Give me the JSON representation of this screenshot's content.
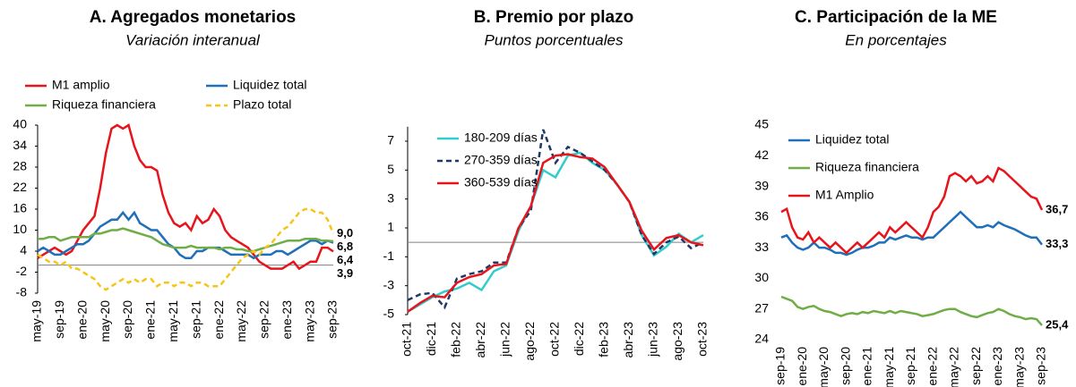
{
  "chart_data": [
    {
      "type": "line",
      "title": "A.   Agregados monetarios",
      "subtitle": "Variación interanual",
      "categories": [
        "may-19",
        null,
        null,
        null,
        "sep-19",
        null,
        null,
        null,
        "ene-20",
        null,
        null,
        null,
        "may-20",
        null,
        null,
        null,
        "sep-20",
        null,
        null,
        null,
        "ene-21",
        null,
        null,
        null,
        "may-21",
        null,
        null,
        null,
        "sep-21",
        null,
        null,
        null,
        "ene-22",
        null,
        null,
        null,
        "may-22",
        null,
        null,
        null,
        "sep-22",
        null,
        null,
        null,
        "ene-23",
        null,
        null,
        null,
        "may-23",
        null,
        null,
        null,
        "sep-23"
      ],
      "ylim": [
        -8,
        40
      ],
      "yticks": [
        40,
        34,
        28,
        22,
        16,
        10,
        4,
        -2,
        -8
      ],
      "zero_line": true,
      "legend": "top",
      "series": [
        {
          "name": "M1 amplio",
          "color": "#e8141b",
          "style": "solid",
          "values": [
            2,
            3,
            4,
            5,
            4,
            3,
            4,
            7,
            10,
            12,
            14,
            22,
            32,
            39,
            40,
            39,
            40,
            34,
            30,
            28,
            28,
            27,
            20,
            15,
            12,
            11,
            12,
            10,
            14,
            12,
            13,
            16,
            14,
            10,
            8,
            7,
            6,
            5,
            3,
            1,
            0,
            -1,
            -1,
            -1,
            0,
            1,
            -1,
            0,
            1,
            1,
            5,
            5,
            3.9
          ],
          "value_labels": [
            null,
            null,
            null,
            null,
            null,
            null,
            null,
            null,
            null,
            null,
            null,
            null,
            null,
            null,
            null,
            null,
            null,
            null,
            null,
            null,
            null,
            null,
            null,
            null,
            null,
            null,
            null,
            null,
            null,
            null,
            null,
            null,
            null,
            null,
            null,
            null,
            null,
            null,
            null,
            null,
            null,
            null,
            null,
            null,
            null,
            null,
            null,
            null,
            null,
            null,
            null,
            null,
            "3,9"
          ]
        },
        {
          "name": "Liquidez total",
          "color": "#1f6fb9",
          "style": "solid",
          "values": [
            4,
            5,
            4,
            3,
            3,
            4,
            5,
            6,
            6,
            7,
            9,
            11,
            12,
            13,
            13,
            15,
            13,
            15,
            12,
            11,
            10,
            10,
            8,
            6,
            5,
            3,
            2,
            2,
            4,
            4,
            5,
            5,
            5,
            4,
            3,
            3,
            3,
            3,
            2,
            3,
            3,
            3,
            4,
            4,
            3,
            4,
            5,
            6,
            7,
            7,
            6,
            7,
            6.4
          ],
          "value_labels": [
            null,
            null,
            null,
            null,
            null,
            null,
            null,
            null,
            null,
            null,
            null,
            null,
            null,
            null,
            null,
            null,
            null,
            null,
            null,
            null,
            null,
            null,
            null,
            null,
            null,
            null,
            null,
            null,
            null,
            null,
            null,
            null,
            null,
            null,
            null,
            null,
            null,
            null,
            null,
            null,
            null,
            null,
            null,
            null,
            null,
            null,
            null,
            null,
            null,
            null,
            null,
            null,
            "6,4"
          ]
        },
        {
          "name": "Riqueza financiera",
          "color": "#70ad47",
          "style": "solid",
          "values": [
            7.5,
            7.5,
            8,
            8,
            7,
            7.5,
            8,
            8,
            8,
            8,
            9,
            9,
            9.5,
            10,
            10,
            10.5,
            10,
            9.5,
            9,
            8.5,
            8,
            7,
            6,
            5.5,
            5,
            5,
            5,
            5.5,
            5,
            5,
            5,
            5,
            4.5,
            5,
            5,
            4.5,
            4.5,
            4,
            4,
            4.5,
            5,
            5.5,
            6,
            6.5,
            7,
            7,
            7,
            7.5,
            7.5,
            7.5,
            7,
            7,
            6.8
          ],
          "value_labels": [
            null,
            null,
            null,
            null,
            null,
            null,
            null,
            null,
            null,
            null,
            null,
            null,
            null,
            null,
            null,
            null,
            null,
            null,
            null,
            null,
            null,
            null,
            null,
            null,
            null,
            null,
            null,
            null,
            null,
            null,
            null,
            null,
            null,
            null,
            null,
            null,
            null,
            null,
            null,
            null,
            null,
            null,
            null,
            null,
            null,
            null,
            null,
            null,
            null,
            null,
            null,
            null,
            "6,8"
          ]
        },
        {
          "name": "Plazo total",
          "color": "#f5c518",
          "style": "dashed",
          "values": [
            3,
            2,
            1,
            1,
            0,
            1,
            -1,
            -1,
            -2,
            -3,
            -4,
            -6,
            -7,
            -6,
            -5,
            -4,
            -5,
            -4,
            -5,
            -4,
            -4,
            -6,
            -5,
            -5,
            -6,
            -5,
            -5,
            -6,
            -5,
            -5,
            -6,
            -6,
            -6,
            -4,
            -2,
            0,
            2,
            3,
            4,
            3,
            5,
            6,
            8,
            10,
            11,
            13,
            15,
            16,
            16,
            15,
            15,
            13,
            9
          ],
          "value_labels": [
            null,
            null,
            null,
            null,
            null,
            null,
            null,
            null,
            null,
            null,
            null,
            null,
            null,
            null,
            null,
            null,
            null,
            null,
            null,
            null,
            null,
            null,
            null,
            null,
            null,
            null,
            null,
            null,
            null,
            null,
            null,
            null,
            null,
            null,
            null,
            null,
            null,
            null,
            null,
            null,
            null,
            null,
            null,
            null,
            null,
            null,
            null,
            null,
            null,
            null,
            null,
            null,
            "9,0"
          ]
        }
      ]
    },
    {
      "type": "line",
      "title": "B. Premio por plazo",
      "subtitle": "Puntos porcentuales",
      "categories": [
        "oct-21",
        null,
        "dic-21",
        null,
        "feb-22",
        null,
        "abr-22",
        null,
        "jun-22",
        null,
        "ago-22",
        null,
        "oct-22",
        null,
        "dic-22",
        null,
        "feb-23",
        null,
        "abr-23",
        null,
        "jun-23",
        null,
        "ago-23",
        null,
        "oct-23"
      ],
      "ylim": [
        -5,
        8
      ],
      "yticks": [
        7,
        5,
        3,
        1,
        -1,
        -3,
        -5
      ],
      "zero_line": true,
      "legend": "upper left",
      "series": [
        {
          "name": "180-209 días",
          "color": "#33cccc",
          "style": "solid",
          "values": [
            -4.8,
            -4.3,
            -3.8,
            -3.4,
            -3.2,
            -2.8,
            -3.3,
            -2,
            -1.6,
            0.8,
            2.5,
            5,
            4.5,
            6,
            6.2,
            5.5,
            5,
            4,
            2.8,
            0.5,
            -0.9,
            -0.3,
            0.6,
            0,
            0.5
          ]
        },
        {
          "name": "270-359 días",
          "color": "#1f3864",
          "style": "dashed",
          "values": [
            -4,
            -3.6,
            -3.5,
            -4.5,
            -2.5,
            -2.2,
            -2,
            -1.4,
            -1.4,
            1,
            2.2,
            7.8,
            5.5,
            6.6,
            6.2,
            5.6,
            5,
            4,
            2.8,
            0.5,
            -0.8,
            0,
            0.4,
            -0.4,
            0
          ]
        },
        {
          "name": "360-539 días",
          "color": "#e8141b",
          "style": "solid",
          "values": [
            -4.8,
            -4.2,
            -3.7,
            -3.8,
            -2.8,
            -2.4,
            -2.2,
            -1.6,
            -1.5,
            1,
            2.5,
            5.5,
            6,
            6.1,
            5.9,
            5.8,
            5.2,
            4,
            2.8,
            0.8,
            -0.5,
            0.3,
            0.5,
            0,
            -0.2
          ]
        }
      ]
    },
    {
      "type": "line",
      "title": "C. Participación de la ME",
      "subtitle": "En porcentajes",
      "categories": [
        "sep-19",
        null,
        null,
        null,
        "ene-20",
        null,
        null,
        null,
        "may-20",
        null,
        null,
        null,
        "sep-20",
        null,
        null,
        null,
        "ene-21",
        null,
        null,
        null,
        "may-21",
        null,
        null,
        null,
        "sep-21",
        null,
        null,
        null,
        "ene-22",
        null,
        null,
        null,
        "may-22",
        null,
        null,
        null,
        "sep-22",
        null,
        null,
        null,
        "ene-23",
        null,
        null,
        null,
        "may-23",
        null,
        null,
        null,
        "sep-23"
      ],
      "ylim": [
        24,
        45
      ],
      "yticks": [
        45,
        42,
        39,
        36,
        33,
        30,
        27,
        24
      ],
      "zero_line": false,
      "legend": "upper left",
      "series": [
        {
          "name": "Liquidez total",
          "color": "#1f6fb9",
          "style": "solid",
          "values": [
            34,
            34.2,
            33.5,
            33,
            32.8,
            33,
            33.5,
            33,
            33,
            32.8,
            32.5,
            32.5,
            32.3,
            32.5,
            32.8,
            33,
            33,
            33.2,
            33.5,
            33.5,
            34,
            33.8,
            34,
            34.2,
            34,
            34,
            33.8,
            34,
            34,
            34.5,
            35,
            35.5,
            36,
            36.5,
            36,
            35.5,
            35,
            35,
            35.2,
            35,
            35.5,
            35.2,
            35,
            34.8,
            34.5,
            34.2,
            34,
            34,
            33.3
          ],
          "value_labels": [
            null,
            null,
            null,
            null,
            null,
            null,
            null,
            null,
            null,
            null,
            null,
            null,
            null,
            null,
            null,
            null,
            null,
            null,
            null,
            null,
            null,
            null,
            null,
            null,
            null,
            null,
            null,
            null,
            null,
            null,
            null,
            null,
            null,
            null,
            null,
            null,
            null,
            null,
            null,
            null,
            null,
            null,
            null,
            null,
            null,
            null,
            null,
            null,
            "33,3"
          ]
        },
        {
          "name": "Riqueza financiera",
          "color": "#70ad47",
          "style": "solid",
          "values": [
            28.2,
            28,
            27.8,
            27.2,
            27,
            27.2,
            27.3,
            27,
            26.8,
            26.7,
            26.5,
            26.3,
            26.5,
            26.6,
            26.5,
            26.7,
            26.6,
            26.8,
            26.7,
            26.6,
            26.8,
            26.6,
            26.8,
            26.7,
            26.6,
            26.5,
            26.3,
            26.4,
            26.5,
            26.7,
            26.9,
            27,
            27,
            26.7,
            26.5,
            26.3,
            26.2,
            26.4,
            26.6,
            26.7,
            27,
            26.8,
            26.5,
            26.3,
            26.2,
            26,
            26.1,
            26,
            25.4
          ],
          "value_labels": [
            null,
            null,
            null,
            null,
            null,
            null,
            null,
            null,
            null,
            null,
            null,
            null,
            null,
            null,
            null,
            null,
            null,
            null,
            null,
            null,
            null,
            null,
            null,
            null,
            null,
            null,
            null,
            null,
            null,
            null,
            null,
            null,
            null,
            null,
            null,
            null,
            null,
            null,
            null,
            null,
            null,
            null,
            null,
            null,
            null,
            null,
            null,
            null,
            "25,4"
          ]
        },
        {
          "name": "M1 Amplio",
          "color": "#e8141b",
          "style": "solid",
          "values": [
            36.5,
            36.8,
            35,
            34,
            33.8,
            34.5,
            33.5,
            34,
            33.5,
            33,
            33.5,
            33,
            32.5,
            33,
            33.5,
            33,
            33.5,
            34,
            34.5,
            34,
            35,
            34.5,
            35,
            35.5,
            35,
            34.5,
            34,
            35,
            36.5,
            37,
            38,
            40,
            40.3,
            40,
            39.5,
            40,
            39.3,
            39.5,
            40,
            39.5,
            40.8,
            40.5,
            40,
            39.5,
            39,
            38.5,
            38,
            37.8,
            36.7
          ],
          "value_labels": [
            null,
            null,
            null,
            null,
            null,
            null,
            null,
            null,
            null,
            null,
            null,
            null,
            null,
            null,
            null,
            null,
            null,
            null,
            null,
            null,
            null,
            null,
            null,
            null,
            null,
            null,
            null,
            null,
            null,
            null,
            null,
            null,
            null,
            null,
            null,
            null,
            null,
            null,
            null,
            null,
            null,
            null,
            null,
            null,
            null,
            null,
            null,
            null,
            "36,7"
          ]
        }
      ]
    }
  ]
}
